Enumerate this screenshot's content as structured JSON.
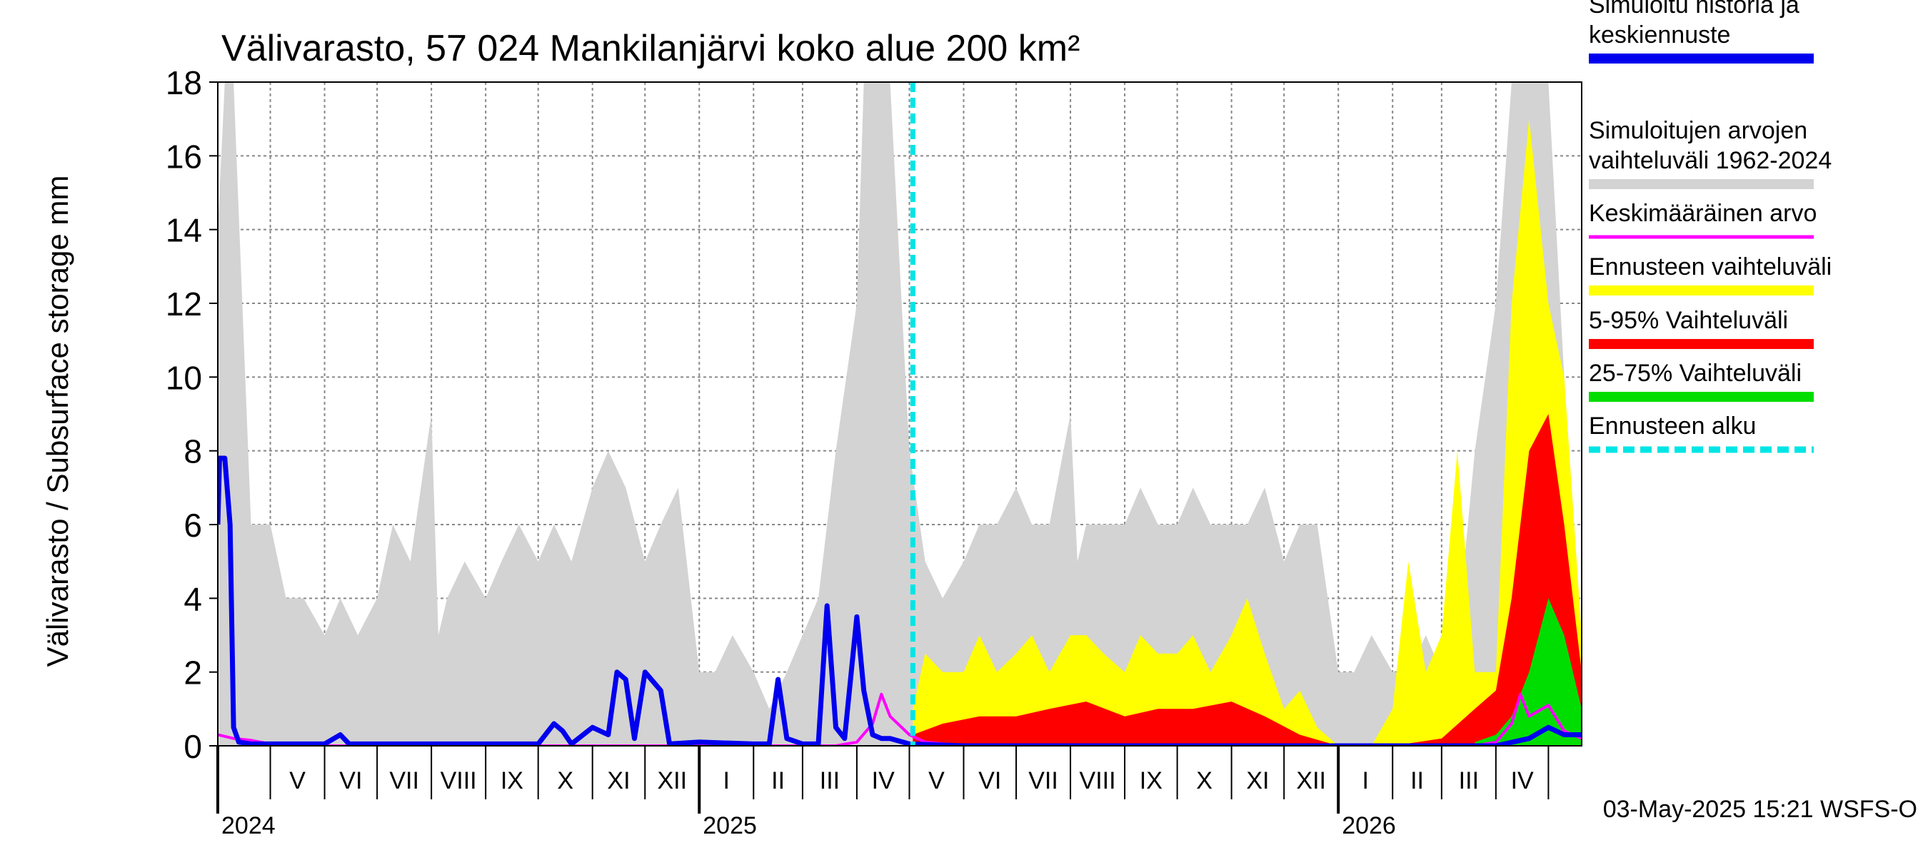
{
  "chart_data": {
    "type": "area",
    "title": "Välivarasto, 57 024 Mankilanjärvi koko alue 200 km²",
    "ylabel": "Välivarasto / Subsurface storage  mm",
    "xlabel": "",
    "ylim": [
      0,
      18
    ],
    "yticks": [
      "0",
      "2",
      "4",
      "6",
      "8",
      "10",
      "12",
      "14",
      "16",
      "18"
    ],
    "xlim": [
      "2024-04-01",
      "2026-05-20"
    ],
    "grid": true,
    "legend_position": "right",
    "forecast_start": "2025-05-03",
    "months": [
      {
        "label": "V",
        "date": "2024-05-01"
      },
      {
        "label": "VI",
        "date": "2024-06-01"
      },
      {
        "label": "VII",
        "date": "2024-07-01"
      },
      {
        "label": "VIII",
        "date": "2024-08-01"
      },
      {
        "label": "IX",
        "date": "2024-09-01"
      },
      {
        "label": "X",
        "date": "2024-10-01"
      },
      {
        "label": "XI",
        "date": "2024-11-01"
      },
      {
        "label": "XII",
        "date": "2024-12-01"
      },
      {
        "label": "I",
        "date": "2025-01-01"
      },
      {
        "label": "II",
        "date": "2025-02-01"
      },
      {
        "label": "III",
        "date": "2025-03-01"
      },
      {
        "label": "IV",
        "date": "2025-04-01"
      },
      {
        "label": "V",
        "date": "2025-05-01"
      },
      {
        "label": "VI",
        "date": "2025-06-01"
      },
      {
        "label": "VII",
        "date": "2025-07-01"
      },
      {
        "label": "VIII",
        "date": "2025-08-01"
      },
      {
        "label": "IX",
        "date": "2025-09-01"
      },
      {
        "label": "X",
        "date": "2025-10-01"
      },
      {
        "label": "XI",
        "date": "2025-11-01"
      },
      {
        "label": "XII",
        "date": "2025-12-01"
      },
      {
        "label": "I",
        "date": "2026-01-01"
      },
      {
        "label": "II",
        "date": "2026-02-01"
      },
      {
        "label": "III",
        "date": "2026-03-01"
      },
      {
        "label": "IV",
        "date": "2026-04-01"
      }
    ],
    "years": [
      {
        "label": "2024",
        "date": "2024-04-01"
      },
      {
        "label": "2025",
        "date": "2025-01-01"
      },
      {
        "label": "2026",
        "date": "2026-01-01"
      }
    ],
    "series": [
      {
        "name": "Simuloitujen arvojen vaihteluväli 1962-2024",
        "kind": "band",
        "color": "#d3d3d3",
        "x": [
          "2024-04-01",
          "2024-04-05",
          "2024-04-10",
          "2024-04-20",
          "2024-05-01",
          "2024-05-10",
          "2024-05-20",
          "2024-06-01",
          "2024-06-10",
          "2024-06-20",
          "2024-07-01",
          "2024-07-10",
          "2024-07-20",
          "2024-08-01",
          "2024-08-05",
          "2024-08-10",
          "2024-08-20",
          "2024-09-01",
          "2024-09-10",
          "2024-09-20",
          "2024-10-01",
          "2024-10-10",
          "2024-10-20",
          "2024-11-01",
          "2024-11-10",
          "2024-11-20",
          "2024-12-01",
          "2024-12-10",
          "2024-12-20",
          "2025-01-01",
          "2025-01-10",
          "2025-01-20",
          "2025-02-01",
          "2025-02-10",
          "2025-02-20",
          "2025-03-01",
          "2025-03-10",
          "2025-03-20",
          "2025-04-01",
          "2025-04-05",
          "2025-04-10",
          "2025-04-20",
          "2025-05-01",
          "2025-05-10",
          "2025-05-20",
          "2025-06-01",
          "2025-06-10",
          "2025-06-20",
          "2025-07-01",
          "2025-07-10",
          "2025-07-20",
          "2025-08-01",
          "2025-08-05",
          "2025-08-10",
          "2025-08-20",
          "2025-09-01",
          "2025-09-10",
          "2025-09-20",
          "2025-10-01",
          "2025-10-10",
          "2025-10-20",
          "2025-11-01",
          "2025-11-10",
          "2025-11-20",
          "2025-12-01",
          "2025-12-10",
          "2025-12-20",
          "2026-01-01",
          "2026-01-10",
          "2026-01-20",
          "2026-02-01",
          "2026-02-10",
          "2026-02-20",
          "2026-03-01",
          "2026-03-10",
          "2026-03-20",
          "2026-04-01",
          "2026-04-10",
          "2026-04-20",
          "2026-05-01",
          "2026-05-10",
          "2026-05-20"
        ],
        "low": [
          0,
          0,
          0,
          0,
          0,
          0,
          0,
          0,
          0,
          0,
          0,
          0,
          0,
          0,
          0,
          0,
          0,
          0,
          0,
          0,
          0,
          0,
          0,
          0,
          0,
          0,
          0,
          0,
          0,
          0,
          0,
          0,
          0,
          0,
          0,
          0,
          0,
          0,
          0,
          0,
          0,
          0,
          0,
          0,
          0,
          0,
          0,
          0,
          0,
          0,
          0,
          0,
          0,
          0,
          0,
          0,
          0,
          0,
          0,
          0,
          0,
          0,
          0,
          0,
          0,
          0,
          0,
          0,
          0,
          0,
          0,
          0,
          0,
          0,
          0,
          0,
          0,
          0,
          0,
          0,
          0,
          0
        ],
        "high": [
          14,
          18,
          18,
          6,
          6,
          4,
          4,
          3,
          4,
          3,
          4,
          6,
          5,
          9,
          3,
          4,
          5,
          4,
          5,
          6,
          5,
          6,
          5,
          7,
          8,
          7,
          5,
          6,
          7,
          2,
          2,
          3,
          2,
          1,
          2,
          3,
          4,
          8,
          12,
          18,
          18,
          18,
          8,
          5,
          4,
          5,
          6,
          6,
          7,
          6,
          6,
          9,
          5,
          6,
          6,
          6,
          7,
          6,
          6,
          7,
          6,
          6,
          6,
          7,
          5,
          6,
          6,
          2,
          2,
          3,
          2,
          2,
          3,
          2,
          3,
          8,
          12,
          18,
          18,
          18,
          10,
          2
        ]
      },
      {
        "name": "Ennusteen vaihteluväli",
        "kind": "band",
        "color": "#ffff00",
        "x": [
          "2025-05-03",
          "2025-05-10",
          "2025-05-20",
          "2025-06-01",
          "2025-06-10",
          "2025-06-20",
          "2025-07-01",
          "2025-07-10",
          "2025-07-20",
          "2025-08-01",
          "2025-08-10",
          "2025-08-20",
          "2025-09-01",
          "2025-09-10",
          "2025-09-20",
          "2025-10-01",
          "2025-10-10",
          "2025-10-20",
          "2025-11-01",
          "2025-11-10",
          "2025-11-20",
          "2025-12-01",
          "2025-12-10",
          "2025-12-20",
          "2026-01-01",
          "2026-01-10",
          "2026-01-20",
          "2026-02-01",
          "2026-02-10",
          "2026-02-20",
          "2026-03-01",
          "2026-03-10",
          "2026-03-20",
          "2026-04-01",
          "2026-04-10",
          "2026-04-20",
          "2026-05-01",
          "2026-05-10",
          "2026-05-20"
        ],
        "low": [
          0,
          0,
          0,
          0,
          0,
          0,
          0,
          0,
          0,
          0,
          0,
          0,
          0,
          0,
          0,
          0,
          0,
          0,
          0,
          0,
          0,
          0,
          0,
          0,
          0,
          0,
          0,
          0,
          0,
          0,
          0,
          0,
          0,
          0,
          0,
          0,
          0,
          0,
          0
        ],
        "high": [
          1,
          2.5,
          2,
          2,
          3,
          2,
          2.5,
          3,
          2,
          3,
          3,
          2.5,
          2,
          3,
          2.5,
          2.5,
          3,
          2,
          3,
          4,
          2.5,
          1,
          1.5,
          0.5,
          0,
          0,
          0,
          1,
          5,
          2,
          3,
          8,
          2,
          2,
          12,
          17,
          12,
          10,
          3
        ]
      },
      {
        "name": "5-95% Vaihteluväli",
        "kind": "band",
        "color": "#ff0000",
        "x": [
          "2025-05-03",
          "2025-05-20",
          "2025-06-10",
          "2025-07-01",
          "2025-07-20",
          "2025-08-10",
          "2025-09-01",
          "2025-09-20",
          "2025-10-10",
          "2025-11-01",
          "2025-11-20",
          "2025-12-10",
          "2026-01-01",
          "2026-02-01",
          "2026-03-01",
          "2026-03-20",
          "2026-04-01",
          "2026-04-10",
          "2026-04-20",
          "2026-05-01",
          "2026-05-10",
          "2026-05-20"
        ],
        "low": [
          0,
          0,
          0,
          0,
          0,
          0,
          0,
          0,
          0,
          0,
          0,
          0,
          0,
          0,
          0,
          0,
          0,
          0,
          0,
          0,
          0,
          0
        ],
        "high": [
          0.3,
          0.6,
          0.8,
          0.8,
          1,
          1.2,
          0.8,
          1,
          1,
          1.2,
          0.8,
          0.3,
          0,
          0,
          0.2,
          1,
          1.5,
          4,
          8,
          9,
          6,
          2
        ]
      },
      {
        "name": "25-75% Vaihteluväli",
        "kind": "band",
        "color": "#00dd00",
        "x": [
          "2026-03-20",
          "2026-04-01",
          "2026-04-10",
          "2026-04-20",
          "2026-05-01",
          "2026-05-10",
          "2026-05-20"
        ],
        "low": [
          0,
          0,
          0,
          0,
          0,
          0,
          0
        ],
        "high": [
          0.1,
          0.3,
          0.8,
          2,
          4,
          3,
          1
        ]
      },
      {
        "name": "Keskimääräinen arvo",
        "kind": "line",
        "color": "#ff00ff",
        "x": [
          "2024-04-01",
          "2024-04-10",
          "2024-04-20",
          "2024-05-01",
          "2024-06-01",
          "2024-08-01",
          "2024-10-01",
          "2024-12-01",
          "2025-02-01",
          "2025-03-20",
          "2025-04-01",
          "2025-04-10",
          "2025-04-15",
          "2025-04-20",
          "2025-05-01",
          "2025-05-10",
          "2025-06-01",
          "2025-08-01",
          "2025-10-01",
          "2025-12-01",
          "2026-02-01",
          "2026-03-20",
          "2026-04-01",
          "2026-04-10",
          "2026-04-15",
          "2026-04-20",
          "2026-05-01",
          "2026-05-10",
          "2026-05-20"
        ],
        "y": [
          0.3,
          0.2,
          0.15,
          0.05,
          0,
          0,
          0,
          0,
          0,
          0,
          0.1,
          0.6,
          1.4,
          0.8,
          0.3,
          0.1,
          0,
          0,
          0,
          0,
          0,
          0,
          0.1,
          0.6,
          1.4,
          0.8,
          1.1,
          0.4,
          0.2
        ]
      },
      {
        "name": "Simuloitu historia ja keskiennuste",
        "kind": "line",
        "color": "#0000ee",
        "x": [
          "2024-04-01",
          "2024-04-02",
          "2024-04-05",
          "2024-04-08",
          "2024-04-10",
          "2024-04-13",
          "2024-04-20",
          "2024-05-01",
          "2024-06-01",
          "2024-06-10",
          "2024-06-15",
          "2024-07-01",
          "2024-08-01",
          "2024-09-01",
          "2024-10-01",
          "2024-10-10",
          "2024-10-15",
          "2024-10-20",
          "2024-11-01",
          "2024-11-10",
          "2024-11-15",
          "2024-11-20",
          "2024-11-25",
          "2024-12-01",
          "2024-12-10",
          "2024-12-15",
          "2025-01-01",
          "2025-02-01",
          "2025-02-10",
          "2025-02-15",
          "2025-02-20",
          "2025-03-01",
          "2025-03-10",
          "2025-03-15",
          "2025-03-20",
          "2025-03-25",
          "2025-04-01",
          "2025-04-05",
          "2025-04-10",
          "2025-04-15",
          "2025-04-20",
          "2025-05-01",
          "2025-06-01",
          "2025-08-01",
          "2025-10-01",
          "2025-12-01",
          "2026-02-01",
          "2026-04-01",
          "2026-04-20",
          "2026-05-01",
          "2026-05-10",
          "2026-05-20"
        ],
        "y": [
          6,
          7.8,
          7.8,
          6,
          0.5,
          0.1,
          0.05,
          0.05,
          0.05,
          0.3,
          0.05,
          0.05,
          0.05,
          0.05,
          0.05,
          0.6,
          0.4,
          0.05,
          0.5,
          0.3,
          2,
          1.8,
          0.2,
          2,
          1.5,
          0.05,
          0.1,
          0.05,
          0.05,
          1.8,
          0.2,
          0.05,
          0.05,
          3.8,
          0.5,
          0.2,
          3.5,
          1.5,
          0.3,
          0.2,
          0.2,
          0.05,
          0,
          0,
          0,
          0,
          0,
          0,
          0.2,
          0.5,
          0.3,
          0.3
        ]
      }
    ],
    "legend": [
      {
        "label": "Simuloitu historia ja keskiennuste",
        "color": "#0000ee",
        "style": "solid"
      },
      {
        "label": "Simuloitujen arvojen vaihteluväli 1962-2024",
        "color": "#d3d3d3",
        "style": "solid"
      },
      {
        "label": "Keskimääräinen arvo",
        "color": "#ff00ff",
        "style": "solid"
      },
      {
        "label": "Ennusteen vaihteluväli",
        "color": "#ffff00",
        "style": "solid"
      },
      {
        "label": "5-95% Vaihteluväli",
        "color": "#ff0000",
        "style": "solid"
      },
      {
        "label": "25-75% Vaihteluväli",
        "color": "#00dd00",
        "style": "solid"
      },
      {
        "label": "Ennusteen alku",
        "color": "#00e5e5",
        "style": "dashed"
      }
    ],
    "footer": "03-May-2025 15:21 WSFS-O"
  }
}
